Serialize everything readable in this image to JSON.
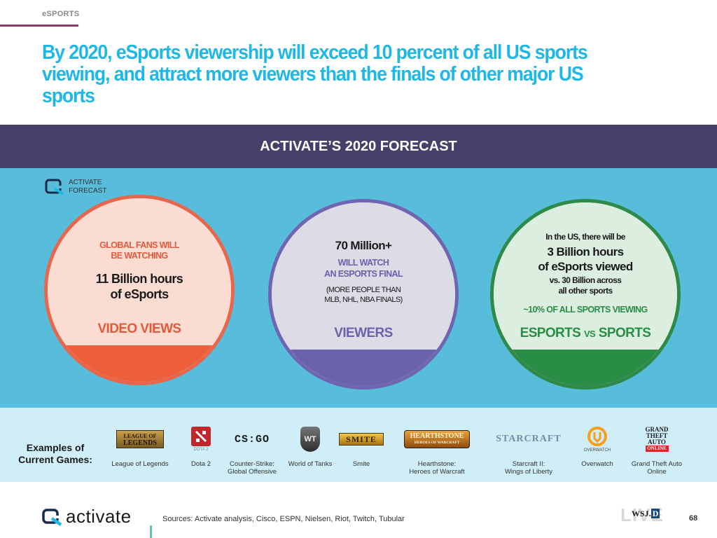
{
  "header": {
    "section_tag": "eSPORTS",
    "headline": "By 2020, eSports viewership will exceed 10 percent of all US sports viewing, and attract more viewers than the finals of other major US sports"
  },
  "banner": {
    "title": "ACTIVATE’S 2020 FORECAST"
  },
  "forecast_badge": {
    "line1": "ACTIVATE",
    "line2": "FORECAST"
  },
  "circles": [
    {
      "top_line1": "GLOBAL FANS WILL",
      "top_line2": "BE WATCHING",
      "main_line1": "11 Billion hours",
      "main_line2": "of eSports",
      "label": "VIDEO VIEWS",
      "accent_color": "#ec5f3a"
    },
    {
      "headline": "70 Million+",
      "sub_line1": "WILL WATCH",
      "sub_line2": "AN ESPORTS FINAL",
      "note_line1": "(MORE PEOPLE THAN",
      "note_line2": "MLB, NHL, NBA FINALS)",
      "label": "VIEWERS",
      "accent_color": "#6a62ad"
    },
    {
      "intro": "In the US, there will be",
      "main_line1": "3 Billion hours",
      "main_line2": "of eSports viewed",
      "vs_line1": "vs. 30 Billion across",
      "vs_line2": "all other sports",
      "pct": "~10% OF ALL SPORTS VIEWING",
      "label_a": "ESPORTS",
      "label_vs": "VS",
      "label_b": "SPORTS",
      "accent_color": "#2a8d45"
    }
  ],
  "games": {
    "label_line1": "Examples of",
    "label_line2": "Current Games:",
    "items": [
      {
        "logo_line1": "LEAGUE OF",
        "logo_line2": "LEGENDS",
        "name_line1": "League of Legends",
        "name_line2": ""
      },
      {
        "logo_text": "DOTA 2",
        "name_line1": "Dota 2",
        "name_line2": ""
      },
      {
        "logo_text": "CS:GO",
        "name_line1": "Counter-Strike:",
        "name_line2": "Global Offensive"
      },
      {
        "logo_text": "WT",
        "name_line1": "World of Tanks",
        "name_line2": ""
      },
      {
        "logo_text": "SMITE",
        "name_line1": "Smite",
        "name_line2": ""
      },
      {
        "logo_text": "HEARTHSTONE",
        "logo_sub": "HEROES OF WARCRAFT",
        "name_line1": "Hearthstone:",
        "name_line2": "Heroes of Warcraft"
      },
      {
        "logo_text": "STARCRAFT",
        "name_line1": "Starcraft II:",
        "name_line2": "Wings of Liberty"
      },
      {
        "logo_text": "OVERWATCH",
        "name_line1": "Overwatch",
        "name_line2": ""
      },
      {
        "logo_line1": "GRAND",
        "logo_line2": "THEFT",
        "logo_line3": "AUTO",
        "logo_line4": "ONLINE",
        "name_line1": "Grand Theft Auto",
        "name_line2": "Online"
      }
    ]
  },
  "footer": {
    "brand": "activate",
    "sources": "Sources: Activate analysis, Cisco, ESPN, Nielsen, Riot, Twitch, Tubular",
    "partner_logo_a": "WSJ.",
    "partner_logo_b": "D",
    "partner_logo_c": "LIVE",
    "page_number": "68"
  },
  "colors": {
    "headline": "#1eb7e6",
    "banner": "#463f69",
    "panel": "#58bdda",
    "games_strip": "#cfeef8"
  }
}
